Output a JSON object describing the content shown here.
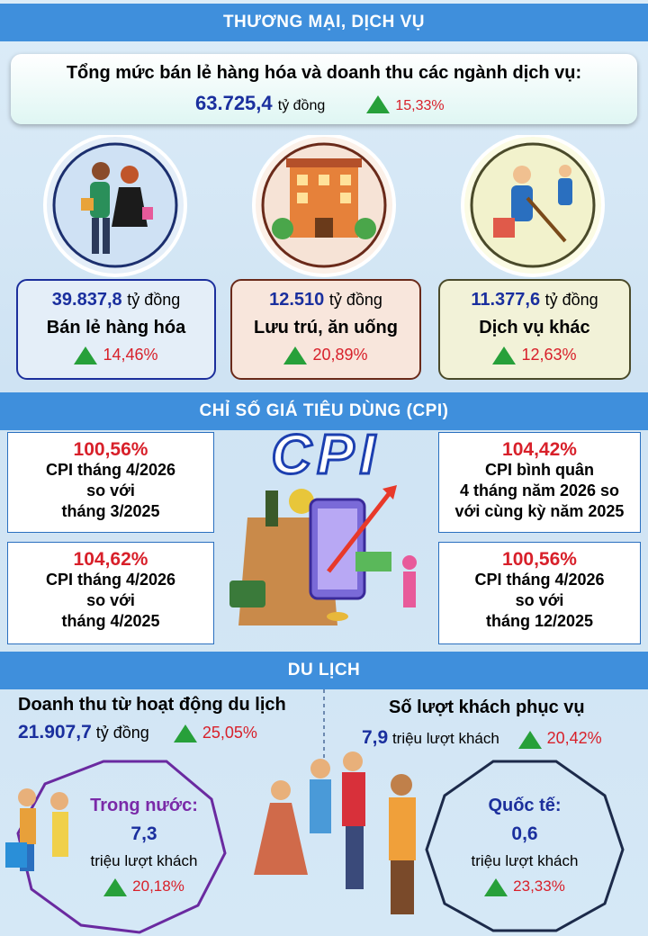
{
  "trade": {
    "header": "THƯƠNG MẠI, DỊCH VỤ",
    "total": {
      "title": "Tổng mức bán lẻ hàng hóa và doanh thu các ngành dịch vụ:",
      "value": "63.725,4",
      "unit": "tỷ đồng",
      "growth": "15,33%"
    },
    "sectors": [
      {
        "value": "39.837,8",
        "unit": "tỷ đồng",
        "label": "Bán lẻ hàng hóa",
        "growth": "14,46%"
      },
      {
        "value": "12.510",
        "unit": "tỷ đồng",
        "label": "Lưu trú, ăn uống",
        "growth": "20,89%"
      },
      {
        "value": "11.377,6",
        "unit": "tỷ đồng",
        "label": "Dịch vụ khác",
        "growth": "12,63%"
      }
    ]
  },
  "cpi": {
    "header": "CHỈ SỐ GIÁ TIÊU DÙNG (CPI)",
    "logo": "CPI",
    "items": [
      {
        "value": "100,56%",
        "lines": [
          "CPI tháng 4/2026",
          "so với",
          "tháng 3/2025"
        ]
      },
      {
        "value": "104,62%",
        "lines": [
          "CPI tháng 4/2026",
          "so với",
          "tháng 4/2025"
        ]
      },
      {
        "value": "104,42%",
        "lines": [
          "CPI bình quân",
          "4 tháng năm 2026 so",
          "với cùng kỳ năm 2025"
        ]
      },
      {
        "value": "100,56%",
        "lines": [
          "CPI tháng 4/2026",
          "so với",
          "tháng 12/2025"
        ]
      }
    ]
  },
  "tourism": {
    "header": "DU LỊCH",
    "revenue": {
      "title": "Doanh thu từ hoạt động du lịch",
      "value": "21.907,7",
      "unit": "tỷ đồng",
      "growth": "25,05%"
    },
    "visitors": {
      "title": "Số lượt khách phục vụ",
      "value": "7,9",
      "unit": "triệu lượt khách",
      "growth": "20,42%"
    },
    "domestic": {
      "label": "Trong nước:",
      "value": "7,3",
      "unit": "triệu lượt khách",
      "growth": "20,18%"
    },
    "international": {
      "label": "Quốc tế:",
      "value": "0,6",
      "unit": "triệu lượt khách",
      "growth": "23,33%"
    }
  }
}
